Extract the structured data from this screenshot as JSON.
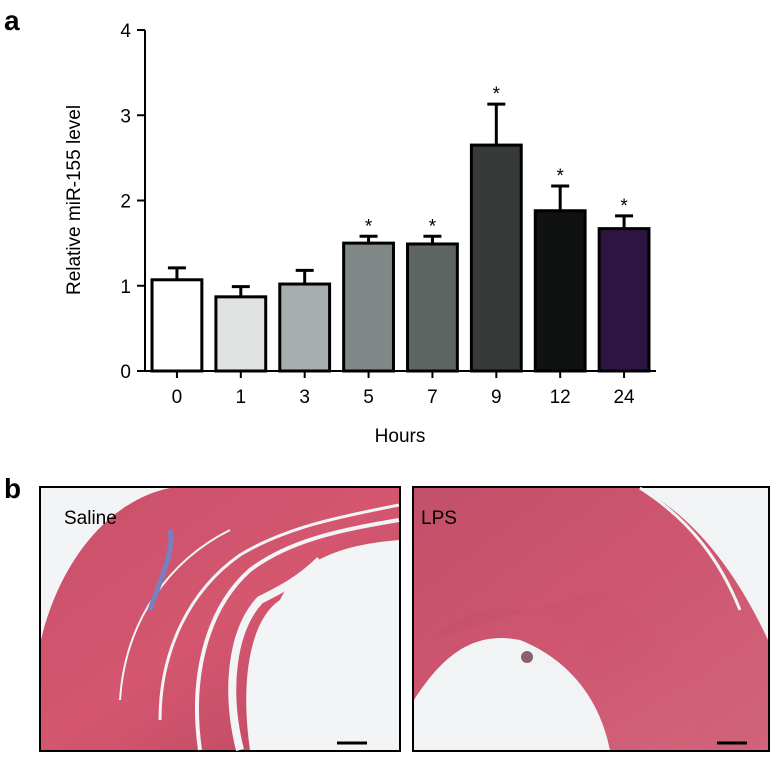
{
  "panel_labels": [
    "a",
    "b"
  ],
  "chart_data": {
    "type": "bar",
    "y_label": "Relative miR-155 level",
    "x_label": "Hours",
    "categories": [
      "0",
      "1",
      "3",
      "5",
      "7",
      "9",
      "12",
      "24"
    ],
    "values": [
      1.07,
      0.87,
      1.02,
      1.5,
      1.49,
      2.65,
      1.88,
      1.67
    ],
    "errors": [
      0.14,
      0.12,
      0.16,
      0.08,
      0.09,
      0.48,
      0.29,
      0.15
    ],
    "colors": [
      "#ffffff",
      "#e0e2e1",
      "#a8adb0",
      "#7f8886",
      "#5f6563",
      "#363a39",
      "#101211",
      "#2e1440"
    ],
    "annotations": [
      null,
      null,
      null,
      "*",
      "*",
      "*",
      "*",
      "*"
    ],
    "ylim": [
      0,
      4
    ],
    "yticks": [
      0,
      1,
      2,
      3,
      4
    ]
  },
  "images": [
    {
      "label": "Saline"
    },
    {
      "label": "LPS"
    }
  ]
}
